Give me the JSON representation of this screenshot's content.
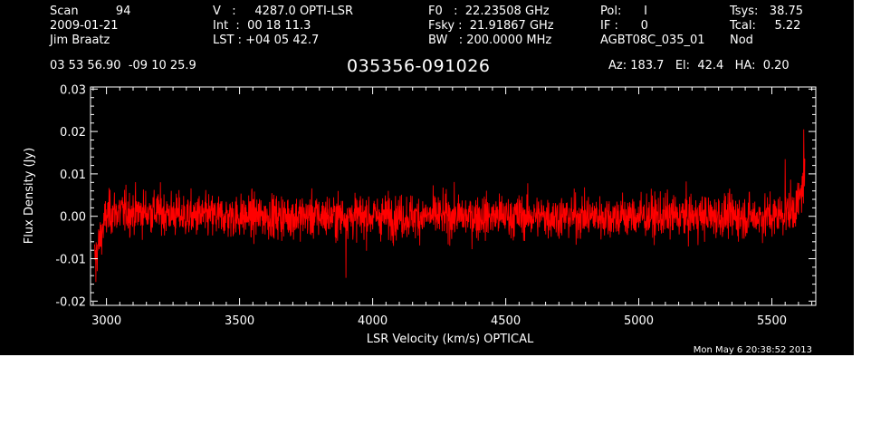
{
  "header": {
    "scan": "Scan          94",
    "date": "2009-01-21",
    "observer": "Jim Braatz",
    "velocity": "V   :     4287.0 OPTI-LSR",
    "int_time": "Int  :  00 18 11.3",
    "lst": "LST : +04 05 42.7",
    "f0": "F0   :  22.23508 GHz",
    "fsky": "Fsky :  21.91867 GHz",
    "bw": "BW   : 200.0000 MHz",
    "pol": "Pol:      I",
    "if_num": "IF :      0",
    "project": "AGBT08C_035_01",
    "tsys": "Tsys:   38.75",
    "tcal": "Tcal:     5.22",
    "proc": "Nod",
    "coords": "03 53 56.90  -09 10 25.9",
    "source": "035356-091026",
    "az_el_ha": "Az: 183.7   El:  42.4   HA:  0.20",
    "timestamp": "Mon May  6 20:38:52 2013"
  },
  "colors": {
    "background": "#000000",
    "foreground": "#ffffff",
    "trace": "#ff0000"
  },
  "chart_data": {
    "type": "line",
    "title": "035356-091026",
    "xlabel": "LSR Velocity (km/s) OPTICAL",
    "ylabel": "Flux Density (Jy)",
    "xlim": [
      2940,
      5665
    ],
    "ylim": [
      -0.021,
      0.0305
    ],
    "x_ticks": [
      3000,
      3500,
      4000,
      4500,
      5000,
      5500
    ],
    "x_tick_labels": [
      "3000",
      "3500",
      "4000",
      "4500",
      "5000",
      "5500"
    ],
    "y_ticks": [
      -0.02,
      -0.01,
      0.0,
      0.01,
      0.02,
      0.03
    ],
    "y_tick_labels": [
      "-0.02",
      "-0.01",
      "0.00",
      "0.01",
      "0.02",
      "0.03"
    ],
    "grid": false,
    "series": [
      {
        "color": "#ff0000",
        "x": [
          2955,
          2970,
          2985,
          3000,
          3020,
          3050,
          3100,
          3200,
          3300,
          3400,
          3500,
          3600,
          3700,
          3800,
          3900,
          4000,
          4100,
          4200,
          4300,
          4400,
          4500,
          4600,
          4700,
          4800,
          4900,
          5000,
          5100,
          5200,
          5300,
          5400,
          5500,
          5560,
          5590,
          5605,
          5615,
          5625
        ],
        "y": [
          -0.01,
          -0.007,
          -0.003,
          0.0,
          0.001,
          0.001,
          0.001,
          0.001,
          0.0,
          0.0,
          0.0,
          0.0,
          0.0,
          0.0,
          0.0,
          0.0,
          0.0,
          0.0,
          0.0,
          0.0,
          0.0,
          0.0,
          0.0,
          0.0,
          0.0,
          0.0,
          0.0,
          0.0,
          0.0,
          0.0,
          0.0,
          0.001,
          0.002,
          0.004,
          0.007,
          0.01
        ],
        "noise_rms": 0.0032,
        "peaks": [
          {
            "x": 2960,
            "y": -0.0155
          },
          {
            "x": 3900,
            "y": -0.0145
          },
          {
            "x": 5550,
            "y": 0.0135
          },
          {
            "x": 5620,
            "y": 0.0205
          }
        ]
      }
    ]
  }
}
